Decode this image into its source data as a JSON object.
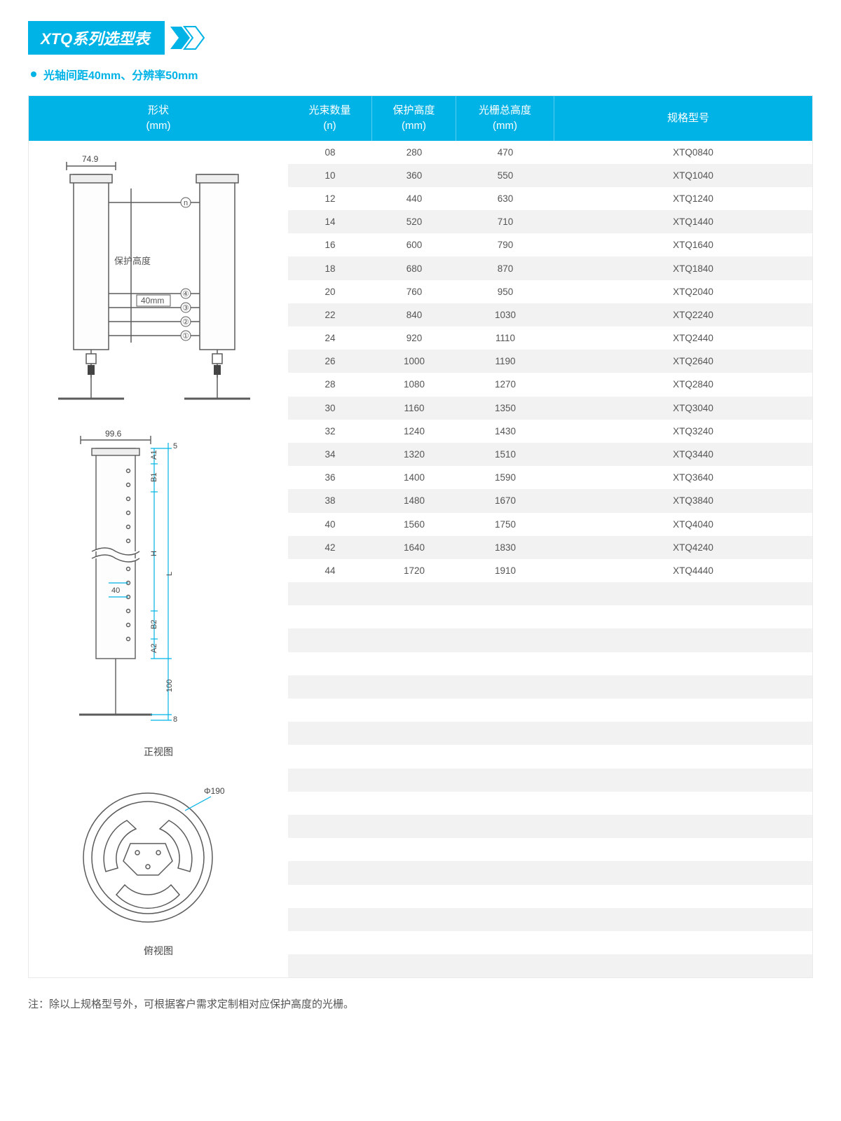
{
  "title": "XTQ系列选型表",
  "subtitle": "光轴间距40mm、分辨率50mm",
  "colors": {
    "accent": "#00b3e6",
    "row_alt": "#f2f2f2",
    "text": "#555555",
    "border": "#eaeaea",
    "stroke": "#5b5b5b",
    "dim_line": "#00b3e6"
  },
  "columns": {
    "shape": {
      "line1": "形状",
      "line2": "(mm)"
    },
    "beam": {
      "line1": "光束数量",
      "line2": "(n)"
    },
    "protect": {
      "line1": "保护高度",
      "line2": "(mm)"
    },
    "total": {
      "line1": "光栅总高度",
      "line2": "(mm)"
    },
    "model": {
      "line1": "规格型号"
    }
  },
  "rows": [
    {
      "beam": "08",
      "protect": "280",
      "total": "470",
      "model": "XTQ0840"
    },
    {
      "beam": "10",
      "protect": "360",
      "total": "550",
      "model": "XTQ1040"
    },
    {
      "beam": "12",
      "protect": "440",
      "total": "630",
      "model": "XTQ1240"
    },
    {
      "beam": "14",
      "protect": "520",
      "total": "710",
      "model": "XTQ1440"
    },
    {
      "beam": "16",
      "protect": "600",
      "total": "790",
      "model": "XTQ1640"
    },
    {
      "beam": "18",
      "protect": "680",
      "total": "870",
      "model": "XTQ1840"
    },
    {
      "beam": "20",
      "protect": "760",
      "total": "950",
      "model": "XTQ2040"
    },
    {
      "beam": "22",
      "protect": "840",
      "total": "1030",
      "model": "XTQ2240"
    },
    {
      "beam": "24",
      "protect": "920",
      "total": "1110",
      "model": "XTQ2440"
    },
    {
      "beam": "26",
      "protect": "1000",
      "total": "1190",
      "model": "XTQ2640"
    },
    {
      "beam": "28",
      "protect": "1080",
      "total": "1270",
      "model": "XTQ2840"
    },
    {
      "beam": "30",
      "protect": "1160",
      "total": "1350",
      "model": "XTQ3040"
    },
    {
      "beam": "32",
      "protect": "1240",
      "total": "1430",
      "model": "XTQ3240"
    },
    {
      "beam": "34",
      "protect": "1320",
      "total": "1510",
      "model": "XTQ3440"
    },
    {
      "beam": "36",
      "protect": "1400",
      "total": "1590",
      "model": "XTQ3640"
    },
    {
      "beam": "38",
      "protect": "1480",
      "total": "1670",
      "model": "XTQ3840"
    },
    {
      "beam": "40",
      "protect": "1560",
      "total": "1750",
      "model": "XTQ4040"
    },
    {
      "beam": "42",
      "protect": "1640",
      "total": "1830",
      "model": "XTQ4240"
    },
    {
      "beam": "44",
      "protect": "1720",
      "total": "1910",
      "model": "XTQ4440"
    }
  ],
  "empty_rows": 17,
  "diagram1": {
    "width_label": "74.9",
    "beam_n_label": "n",
    "beam_lines": [
      "④",
      "③",
      "②",
      "①"
    ],
    "protect_label": "保护高度",
    "pitch_label": "40mm"
  },
  "diagram2": {
    "width_label": "99.6",
    "dim_top": "5",
    "dim_a1": "A1",
    "dim_b1": "B1",
    "dim_H": "H",
    "dim_L": "L",
    "dim_40": "40",
    "dim_b2": "B2",
    "dim_a2": "A2",
    "dim_100": "100",
    "dim_8": "8",
    "caption": "正视图"
  },
  "diagram3": {
    "diameter": "Φ190",
    "caption": "俯视图"
  },
  "footnote": "注：除以上规格型号外，可根据客户需求定制相对应保护高度的光栅。"
}
